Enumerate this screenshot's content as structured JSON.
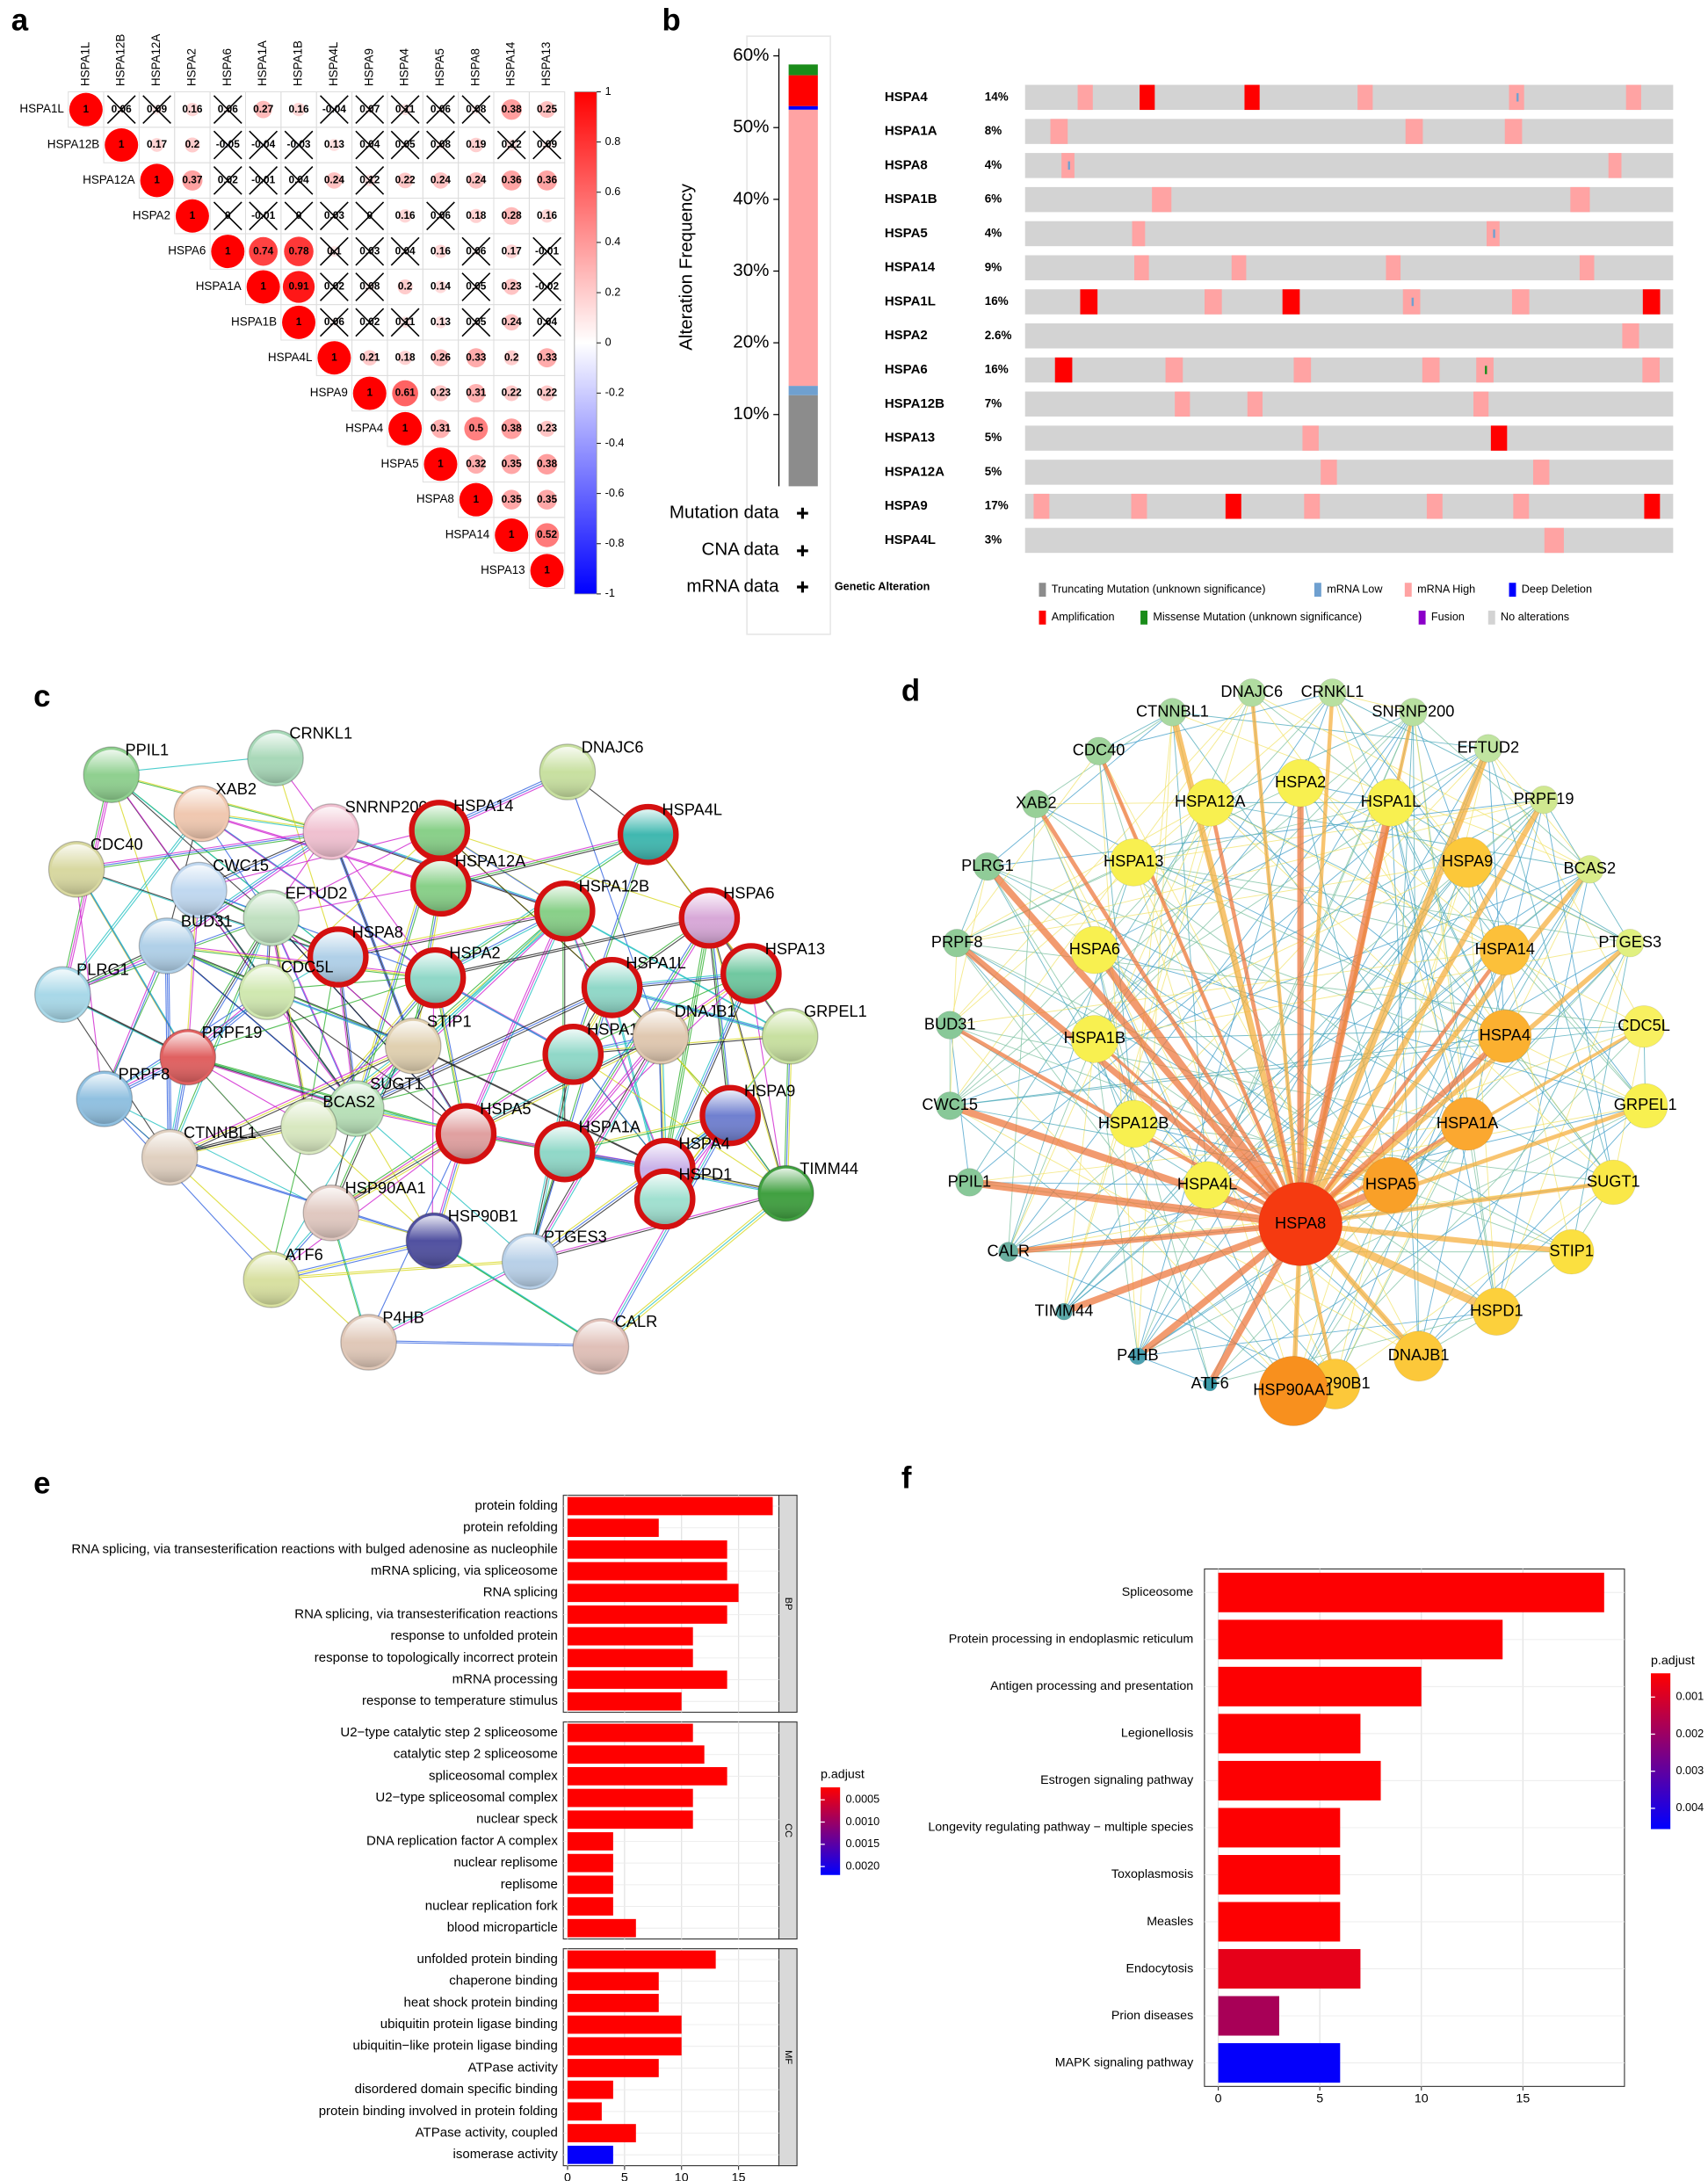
{
  "chart_data": [
    {
      "panel": "a",
      "type": "corrplot",
      "variables": [
        "HSPA1L",
        "HSPA12B",
        "HSPA12A",
        "HSPA2",
        "HSPA6",
        "HSPA1A",
        "HSPA1B",
        "HSPA4L",
        "HSPA9",
        "HSPA4",
        "HSPA5",
        "HSPA8",
        "HSPA14",
        "HSPA13"
      ],
      "values": [
        [
          1,
          0.06,
          0.09,
          0.16,
          0.06,
          0.27,
          0.16,
          -0.04,
          0.07,
          0.11,
          0.06,
          0.08,
          0.38,
          0.25
        ],
        [
          1,
          0.17,
          0.2,
          -0.05,
          -0.04,
          -0.03,
          0.13,
          0.04,
          0.05,
          0.08,
          0.19,
          0.12,
          0.09
        ],
        [
          1,
          0.37,
          0.02,
          -0.01,
          0.04,
          0.24,
          0.12,
          0.22,
          0.24,
          0.24,
          0.36,
          0.36
        ],
        [
          1,
          0,
          -0.01,
          0,
          0.03,
          0,
          0.16,
          0.06,
          0.18,
          0.28,
          0.16
        ],
        [
          1,
          0.74,
          0.78,
          0.1,
          0.03,
          0.04,
          0.16,
          0.06,
          0.17,
          -0.01
        ],
        [
          1,
          0.91,
          0.02,
          0.08,
          0.2,
          0.14,
          0.05,
          0.23,
          -0.02
        ],
        [
          1,
          0.06,
          0.02,
          0.11,
          0.13,
          0.05,
          0.24,
          0.04
        ],
        [
          1,
          0.21,
          0.18,
          0.26,
          0.33,
          0.2,
          0.33
        ],
        [
          1,
          0.61,
          0.23,
          0.31,
          0.22,
          0.22
        ],
        [
          1,
          0.31,
          0.5,
          0.38,
          0.23
        ],
        [
          1,
          0.32,
          0.35,
          0.38
        ],
        [
          1,
          0.35,
          0.35
        ],
        [
          1,
          0.52
        ],
        [
          1
        ]
      ],
      "insignificant": [
        [
          false,
          true,
          true,
          false,
          true,
          false,
          false,
          true,
          true,
          true,
          true,
          true,
          false,
          false
        ],
        [
          false,
          false,
          false,
          true,
          true,
          true,
          false,
          true,
          true,
          true,
          false,
          true,
          true
        ],
        [
          false,
          false,
          true,
          true,
          true,
          false,
          true,
          false,
          false,
          false,
          false,
          false
        ],
        [
          false,
          true,
          true,
          true,
          true,
          true,
          false,
          true,
          false,
          false,
          false
        ],
        [
          false,
          false,
          false,
          true,
          true,
          true,
          false,
          true,
          false,
          true
        ],
        [
          false,
          false,
          true,
          true,
          false,
          false,
          true,
          false,
          true
        ],
        [
          false,
          true,
          true,
          true,
          false,
          true,
          false,
          true
        ],
        [
          false,
          false,
          false,
          false,
          false,
          false,
          false
        ],
        [
          false,
          false,
          false,
          false,
          false,
          false
        ],
        [
          false,
          false,
          false,
          false,
          false
        ],
        [
          false,
          false,
          false,
          false
        ],
        [
          false,
          false,
          false
        ],
        [
          false,
          false
        ],
        [
          false
        ]
      ],
      "clim": [
        -1,
        1
      ],
      "cticks": [
        1,
        0.8,
        0.6,
        0.4,
        0.2,
        0,
        -0.2,
        -0.4,
        -0.6,
        -0.8,
        -1
      ]
    },
    {
      "panel": "b",
      "type": "oncoprint",
      "ylabel": "Alteration Frequency",
      "ylim": [
        0,
        61
      ],
      "yticks": [
        {
          "value": 10,
          "label": "10%"
        },
        {
          "value": 20,
          "label": "20%"
        },
        {
          "value": 30,
          "label": "30%"
        },
        {
          "value": 40,
          "label": "40%"
        },
        {
          "value": 50,
          "label": "50%"
        },
        {
          "value": 60,
          "label": "60%"
        }
      ],
      "series": [
        {
          "name": "Truncating Mutation (unknown significance)",
          "color": "#8c8c8c",
          "value": 12.7
        },
        {
          "name": "mRNA Low",
          "color": "#6fa0d0",
          "value": 1.3
        },
        {
          "name": "mRNA High",
          "color": "#ffa3a3",
          "value": 38.5
        },
        {
          "name": "Deep Deletion",
          "color": "#0000ff",
          "value": 0.5
        },
        {
          "name": "Amplification",
          "color": "#ff0000",
          "value": 4.3
        },
        {
          "name": "Missense Mutation (unknown significance)",
          "color": "#1a8c1a",
          "value": 1.5
        },
        {
          "name": "Fusion",
          "color": "#8b00c9",
          "value": null
        },
        {
          "name": "No alterations",
          "color": "#d3d3d3",
          "value": null
        }
      ],
      "tracks": [
        "Mutation data",
        "CNA data",
        "mRNA data"
      ],
      "track_legend": "Genetic Alteration",
      "genes": [
        "HSPA4",
        "HSPA1A",
        "HSPA8",
        "HSPA1B",
        "HSPA5",
        "HSPA14",
        "HSPA1L",
        "HSPA2",
        "HSPA6",
        "HSPA12B",
        "HSPA13",
        "HSPA12A",
        "HSPA9",
        "HSPA4L"
      ],
      "values": [
        14,
        8,
        4,
        6,
        4,
        9,
        16,
        2.6,
        16,
        7,
        5,
        5,
        17,
        3
      ],
      "value_labels": [
        "14%",
        "8%",
        "4%",
        "6%",
        "4%",
        "9%",
        "16%",
        "2.6%",
        "16%",
        "7%",
        "5%",
        "5%",
        "17%",
        "3%"
      ]
    },
    {
      "panel": "c",
      "type": "network",
      "nodes": [
        {
          "label": "PPIL1",
          "color": "#8fd08f",
          "highlighted": false
        },
        {
          "label": "CRNKL1",
          "color": "#a8d8b8",
          "highlighted": false
        },
        {
          "label": "XAB2",
          "color": "#f0c8b0",
          "highlighted": false
        },
        {
          "label": "SNRNP200",
          "color": "#f0c0d0",
          "highlighted": false
        },
        {
          "label": "DNAJC6",
          "color": "#c8e0a0",
          "highlighted": false
        },
        {
          "label": "HSPA14",
          "color": "#88d088",
          "highlighted": true
        },
        {
          "label": "HSPA4L",
          "color": "#40b8b0",
          "highlighted": true
        },
        {
          "label": "CDC40",
          "color": "#d8d8a0",
          "highlighted": false
        },
        {
          "label": "HSPA12A",
          "color": "#88d088",
          "highlighted": true
        },
        {
          "label": "HSPA12B",
          "color": "#88d088",
          "highlighted": true
        },
        {
          "label": "HSPA6",
          "color": "#d8a8d8",
          "highlighted": true
        },
        {
          "label": "CWC15",
          "color": "#c0d8f0",
          "highlighted": false
        },
        {
          "label": "EFTUD2",
          "color": "#c0e0c0",
          "highlighted": false
        },
        {
          "label": "BUD31",
          "color": "#b0d0e8",
          "highlighted": false
        },
        {
          "label": "HSPA8",
          "color": "#b0d0e8",
          "highlighted": true
        },
        {
          "label": "HSPA2",
          "color": "#90d8c8",
          "highlighted": true
        },
        {
          "label": "HSPA13",
          "color": "#70c8a0",
          "highlighted": true
        },
        {
          "label": "PLRG1",
          "color": "#a8d8e8",
          "highlighted": false
        },
        {
          "label": "CDC5L",
          "color": "#d0e8b0",
          "highlighted": false
        },
        {
          "label": "HSPA1L",
          "color": "#90d8c8",
          "highlighted": true
        },
        {
          "label": "GRPEL1",
          "color": "#c8e0a0",
          "highlighted": false
        },
        {
          "label": "PRPF19",
          "color": "#e06060",
          "highlighted": false
        },
        {
          "label": "STIP1",
          "color": "#e0d0b0",
          "highlighted": false
        },
        {
          "label": "HSPA1B",
          "color": "#90d8c8",
          "highlighted": true
        },
        {
          "label": "DNAJB1",
          "color": "#e0c8b0",
          "highlighted": false
        },
        {
          "label": "PRPF8",
          "color": "#90c0e0",
          "highlighted": false
        },
        {
          "label": "SUGT1",
          "color": "#b8e0b8",
          "highlighted": false
        },
        {
          "label": "HSPA5",
          "color": "#e0a0a0",
          "highlighted": true
        },
        {
          "label": "HSPA1A",
          "color": "#90d8c8",
          "highlighted": true
        },
        {
          "label": "HSPA9",
          "color": "#7080d0",
          "highlighted": true
        },
        {
          "label": "BCAS2",
          "color": "#d8e8c0",
          "highlighted": false
        },
        {
          "label": "TIMM44",
          "color": "#40a040",
          "highlighted": false
        },
        {
          "label": "CTNNBL1",
          "color": "#e0d0c0",
          "highlighted": false
        },
        {
          "label": "HSP90AA1",
          "color": "#e0c8c0",
          "highlighted": false
        },
        {
          "label": "HSPA4",
          "color": "#c8b0e8",
          "highlighted": true
        },
        {
          "label": "HSP90B1",
          "color": "#5050a0",
          "highlighted": false
        },
        {
          "label": "HSPD1",
          "color": "#a0e0d0",
          "highlighted": true
        },
        {
          "label": "ATF6",
          "color": "#d8e0a0",
          "highlighted": false
        },
        {
          "label": "PTGES3",
          "color": "#b8d0e8",
          "highlighted": false
        },
        {
          "label": "P4HB",
          "color": "#e0c8b8",
          "highlighted": false
        },
        {
          "label": "CALR",
          "color": "#e0c0b8",
          "highlighted": false
        }
      ]
    },
    {
      "panel": "d",
      "type": "network",
      "nodes": [
        {
          "label": "CTNNBL1",
          "color": "#a8d8a0"
        },
        {
          "label": "DNAJC6",
          "color": "#b0dca0"
        },
        {
          "label": "CRNKL1",
          "color": "#b8e0a0"
        },
        {
          "label": "SNRNP200",
          "color": "#b8e0a0"
        },
        {
          "label": "EFTUD2",
          "color": "#c0e4a0"
        },
        {
          "label": "PRPF19",
          "color": "#d0e890"
        },
        {
          "label": "BCAS2",
          "color": "#d8ec88"
        },
        {
          "label": "PTGES3",
          "color": "#e0f080"
        },
        {
          "label": "CDC5L",
          "color": "#f8f060"
        },
        {
          "label": "GRPEL1",
          "color": "#f8f050"
        },
        {
          "label": "SUGT1",
          "color": "#fae848"
        },
        {
          "label": "STIP1",
          "color": "#fbe040"
        },
        {
          "label": "HSPD1",
          "color": "#fcd03c"
        },
        {
          "label": "DNAJB1",
          "color": "#fcc83a"
        },
        {
          "label": "HSP90B1",
          "color": "#fcc83a"
        },
        {
          "label": "HSP90AA1",
          "color": "#f8901e"
        },
        {
          "label": "ATF6",
          "color": "#3a9aa8"
        },
        {
          "label": "P4HB",
          "color": "#4aa0b0"
        },
        {
          "label": "TIMM44",
          "color": "#5aa8a8"
        },
        {
          "label": "CALR",
          "color": "#6ab0a0"
        },
        {
          "label": "PPIL1",
          "color": "#88c898"
        },
        {
          "label": "CWC15",
          "color": "#88c898"
        },
        {
          "label": "BUD31",
          "color": "#88c898"
        },
        {
          "label": "PRPF8",
          "color": "#90cc98"
        },
        {
          "label": "PLRG1",
          "color": "#90cc98"
        },
        {
          "label": "XAB2",
          "color": "#98d098"
        },
        {
          "label": "CDC40",
          "color": "#a0d49c"
        },
        {
          "label": "HSPA12A",
          "color": "#f8f050"
        },
        {
          "label": "HSPA2",
          "color": "#f8f050"
        },
        {
          "label": "HSPA1L",
          "color": "#f8f050"
        },
        {
          "label": "HSPA13",
          "color": "#f8f050"
        },
        {
          "label": "HSPA9",
          "color": "#fcc83a"
        },
        {
          "label": "HSPA6",
          "color": "#f8f050"
        },
        {
          "label": "HSPA14",
          "color": "#fcc03a"
        },
        {
          "label": "HSPA1B",
          "color": "#f8f050"
        },
        {
          "label": "HSPA4",
          "color": "#fbb030"
        },
        {
          "label": "HSPA12B",
          "color": "#f8f050"
        },
        {
          "label": "HSPA1A",
          "color": "#fba830"
        },
        {
          "label": "HSPA4L",
          "color": "#f8f050"
        },
        {
          "label": "HSPA5",
          "color": "#f9a028"
        },
        {
          "label": "HSPA8",
          "color": "#f53a10"
        }
      ]
    },
    {
      "panel": "e",
      "type": "bar",
      "orientation": "horizontal",
      "facets": [
        {
          "name": "BP",
          "categories": [
            "protein folding",
            "protein refolding",
            "RNA splicing, via transesterification reactions with bulged adenosine as nucleophile",
            "mRNA splicing, via spliceosome",
            "RNA splicing",
            "RNA splicing, via transesterification reactions",
            "response to unfolded protein",
            "response to topologically incorrect protein",
            "mRNA processing",
            "response to temperature stimulus"
          ],
          "values": [
            18,
            8,
            14,
            14,
            15,
            14,
            11,
            11,
            14,
            10
          ],
          "p_adjust": [
            0.00022,
            0.00022,
            0.00022,
            0.00022,
            0.00022,
            0.00022,
            0.00022,
            0.00022,
            0.00022,
            0.00022
          ]
        },
        {
          "name": "CC",
          "categories": [
            "U2−type catalytic step 2 spliceosome",
            "catalytic step 2 spliceosome",
            "spliceosomal complex",
            "U2−type spliceosomal complex",
            "nuclear speck",
            "DNA replication factor A complex",
            "nuclear replisome",
            "replisome",
            "nuclear replication fork",
            "blood microparticle"
          ],
          "values": [
            11,
            12,
            14,
            11,
            11,
            4,
            4,
            4,
            4,
            6
          ],
          "p_adjust": [
            0.00022,
            0.00022,
            0.00022,
            0.00022,
            0.00022,
            0.00022,
            0.00022,
            0.00022,
            0.00022,
            0.00022
          ]
        },
        {
          "name": "MF",
          "categories": [
            "unfolded protein binding",
            "chaperone binding",
            "heat shock protein binding",
            "ubiquitin protein ligase binding",
            "ubiquitin−like protein ligase binding",
            "ATPase activity",
            "disordered domain specific binding",
            "protein binding involved in protein folding",
            "ATPase activity, coupled",
            "isomerase activity"
          ],
          "values": [
            13,
            8,
            8,
            10,
            10,
            8,
            4,
            3,
            6,
            4
          ],
          "p_adjust": [
            0.00022,
            0.00022,
            0.00022,
            0.00022,
            0.00022,
            0.00022,
            0.00022,
            0.00022,
            0.00022,
            0.00215
          ]
        }
      ],
      "xlim": [
        -0.37,
        18.54
      ],
      "xticks": [
        0,
        5,
        10,
        15
      ],
      "legend_title": "p.adjust",
      "clim": [
        0.00022,
        0.00219
      ],
      "cticks": [
        0.0005,
        {
          "value": 0.001,
          "label": "0.0010"
        },
        0.0015,
        {
          "value": 0.002,
          "label": "0.0020"
        }
      ]
    },
    {
      "panel": "f",
      "type": "bar",
      "orientation": "horizontal",
      "categories": [
        "Spliceosome",
        "Protein processing in endoplasmic reticulum",
        "Antigen processing and presentation",
        "Legionellosis",
        "Estrogen signaling pathway",
        "Longevity regulating pathway − multiple species",
        "Toxoplasmosis",
        "Measles",
        "Endocytosis",
        "Prion diseases",
        "MAPK signaling pathway"
      ],
      "values": [
        19,
        14,
        10,
        7,
        8,
        6,
        6,
        6,
        7,
        3,
        6
      ],
      "p_adjust": [
        0.0004,
        0.0004,
        0.0004,
        0.0004,
        0.0004,
        0.0004,
        0.0004,
        0.0004,
        0.00078,
        0.0018,
        0.0045
      ],
      "xlim": [
        -0.68,
        20
      ],
      "xticks": [
        0,
        5,
        10,
        15
      ],
      "legend_title": "p.adjust",
      "clim": [
        0.00036,
        0.00456
      ],
      "cticks": [
        0.001,
        0.002,
        0.003,
        0.004
      ]
    }
  ]
}
